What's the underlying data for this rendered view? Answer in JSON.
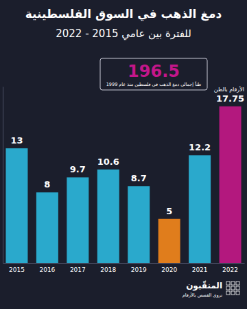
{
  "chart_data": {
    "type": "bar",
    "title": "دمغ الذهب في السوق الفلسطينية",
    "subtitle": "للفترة بين عامي 2015 - 2022",
    "categories": [
      "2015",
      "2016",
      "2017",
      "2018",
      "2019",
      "2020",
      "2021",
      "2022"
    ],
    "values": [
      13,
      8,
      9.7,
      10.6,
      8.7,
      5,
      12.2,
      17.75
    ],
    "colors": [
      "#2aa9cc",
      "#2aa9cc",
      "#2aa9cc",
      "#2aa9cc",
      "#2aa9cc",
      "#e07d1c",
      "#2aa9cc",
      "#b3187e"
    ],
    "ylim": [
      0,
      20
    ],
    "yticks": [],
    "tick_labels": "x",
    "data_labels": true,
    "grid": false,
    "unit_label": "الأرقام بالطن",
    "highlight": {
      "value": 196.5,
      "text": "طناً إجمالي دمغ الذهب في فلسطين منذ عام 1999"
    },
    "brand": {
      "name": "المنقّبون",
      "tagline": "نروي القصص بالأرقام"
    }
  }
}
